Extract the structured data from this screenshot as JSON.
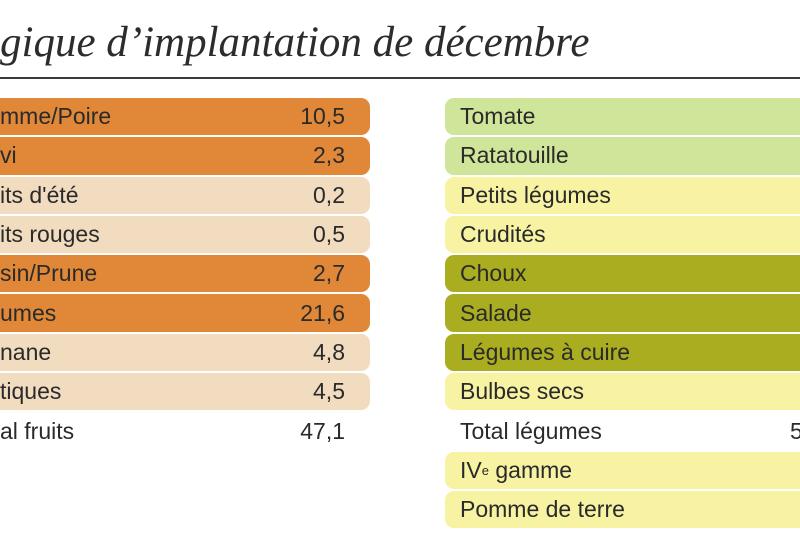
{
  "title": "gique d’implantation de décembre",
  "colors": {
    "fruit_dark": "#e08838",
    "fruit_light": "#f1dcbf",
    "veg_light_green": "#cfe59a",
    "veg_yellow": "#f7f3a3",
    "veg_dark_green": "#a9ad1f"
  },
  "fruits": [
    {
      "label": "mme/Poire",
      "value": "10,5",
      "style": "fruit_dark"
    },
    {
      "label": "vi",
      "value": "2,3",
      "style": "fruit_dark"
    },
    {
      "label": "its d'été",
      "value": "0,2",
      "style": "fruit_light"
    },
    {
      "label": "its rouges",
      "value": "0,5",
      "style": "fruit_light"
    },
    {
      "label": "sin/Prune",
      "value": "2,7",
      "style": "fruit_dark"
    },
    {
      "label": "umes",
      "value": "21,6",
      "style": "fruit_dark"
    },
    {
      "label": "nane",
      "value": "4,8",
      "style": "fruit_light"
    },
    {
      "label": "tiques",
      "value": "4,5",
      "style": "fruit_light"
    },
    {
      "label": "al fruits",
      "value": "47,1",
      "style": "none"
    }
  ],
  "vegetables": [
    {
      "label": "Tomate",
      "style": "veg_light_green"
    },
    {
      "label": "Ratatouille",
      "style": "veg_light_green"
    },
    {
      "label": "Petits légumes",
      "style": "veg_yellow"
    },
    {
      "label": "Crudités",
      "style": "veg_yellow"
    },
    {
      "label": "Choux",
      "style": "veg_dark_green"
    },
    {
      "label": "Salade",
      "style": "veg_dark_green"
    },
    {
      "label": "Légumes à cuire",
      "style": "veg_dark_green"
    },
    {
      "label": "Bulbes secs",
      "style": "veg_yellow"
    },
    {
      "label": "Total légumes",
      "value": "5",
      "style": "none"
    },
    {
      "label": "IV",
      "label_sup": "e",
      "label_suffix": " gamme",
      "style": "veg_yellow"
    },
    {
      "label": "Pomme de terre",
      "style": "veg_yellow"
    }
  ]
}
